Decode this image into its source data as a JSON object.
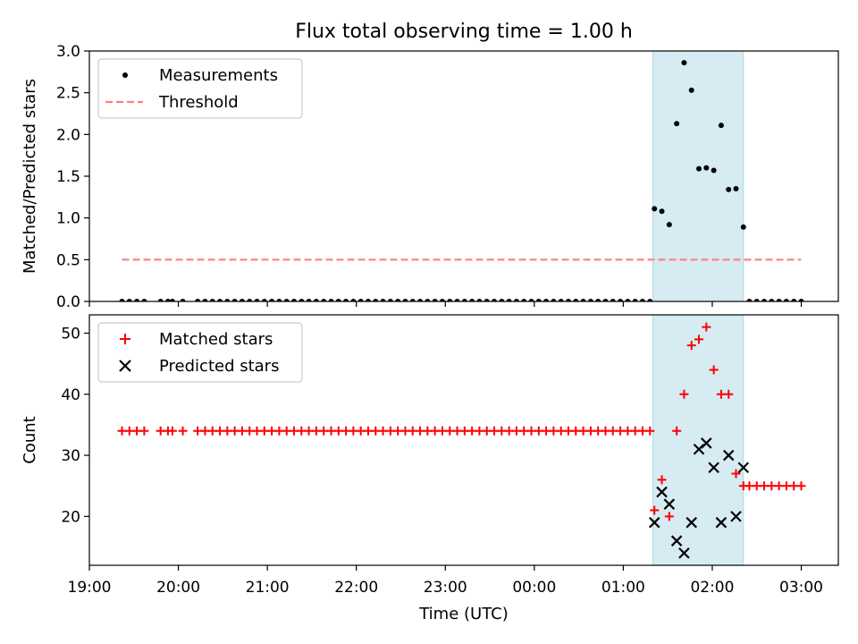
{
  "chart_data": {
    "title": "Flux total observing time = 1.00 h",
    "x_axis": {
      "label": "Time (UTC)",
      "type": "time",
      "ticks": [
        "19:00",
        "20:00",
        "21:00",
        "22:00",
        "23:00",
        "00:00",
        "01:00",
        "02:00",
        "03:00"
      ],
      "range": [
        "19:00",
        "03:25"
      ]
    },
    "highlight_window": {
      "start": "01:20",
      "end": "02:21",
      "color": "#add8e6"
    },
    "panels": [
      {
        "type": "scatter",
        "ylabel": "Matched/Predicted stars",
        "ylim": [
          0,
          3.0
        ],
        "yticks": [
          "0.0",
          "0.5",
          "1.0",
          "1.5",
          "2.0",
          "2.5",
          "3.0"
        ],
        "legend_position": "upper-left",
        "series": [
          {
            "name": "Measurements",
            "marker": "dot",
            "color": "#000000",
            "points": [
              [
                "19:22",
                0.0
              ],
              [
                "19:27",
                0.0
              ],
              [
                "19:32",
                0.0
              ],
              [
                "19:37",
                0.0
              ],
              [
                "19:48",
                0.0
              ],
              [
                "19:53",
                0.0
              ],
              [
                "19:56",
                0.0
              ],
              [
                "20:03",
                0.0
              ],
              [
                "20:13",
                0.0
              ],
              [
                "20:18",
                0.0
              ],
              [
                "20:23",
                0.0
              ],
              [
                "20:28",
                0.0
              ],
              [
                "20:33",
                0.0
              ],
              [
                "20:38",
                0.0
              ],
              [
                "20:43",
                0.0
              ],
              [
                "20:48",
                0.0
              ],
              [
                "20:53",
                0.0
              ],
              [
                "20:58",
                0.0
              ],
              [
                "21:03",
                0.0
              ],
              [
                "21:08",
                0.0
              ],
              [
                "21:13",
                0.0
              ],
              [
                "21:18",
                0.0
              ],
              [
                "21:23",
                0.0
              ],
              [
                "21:28",
                0.0
              ],
              [
                "21:33",
                0.0
              ],
              [
                "21:38",
                0.0
              ],
              [
                "21:43",
                0.0
              ],
              [
                "21:48",
                0.0
              ],
              [
                "21:53",
                0.0
              ],
              [
                "21:58",
                0.0
              ],
              [
                "22:03",
                0.0
              ],
              [
                "22:08",
                0.0
              ],
              [
                "22:13",
                0.0
              ],
              [
                "22:18",
                0.0
              ],
              [
                "22:23",
                0.0
              ],
              [
                "22:28",
                0.0
              ],
              [
                "22:33",
                0.0
              ],
              [
                "22:38",
                0.0
              ],
              [
                "22:43",
                0.0
              ],
              [
                "22:48",
                0.0
              ],
              [
                "22:53",
                0.0
              ],
              [
                "22:58",
                0.0
              ],
              [
                "23:03",
                0.0
              ],
              [
                "23:08",
                0.0
              ],
              [
                "23:13",
                0.0
              ],
              [
                "23:18",
                0.0
              ],
              [
                "23:23",
                0.0
              ],
              [
                "23:28",
                0.0
              ],
              [
                "23:33",
                0.0
              ],
              [
                "23:38",
                0.0
              ],
              [
                "23:43",
                0.0
              ],
              [
                "23:48",
                0.0
              ],
              [
                "23:53",
                0.0
              ],
              [
                "23:58",
                0.0
              ],
              [
                "00:03",
                0.0
              ],
              [
                "00:08",
                0.0
              ],
              [
                "00:13",
                0.0
              ],
              [
                "00:18",
                0.0
              ],
              [
                "00:23",
                0.0
              ],
              [
                "00:28",
                0.0
              ],
              [
                "00:33",
                0.0
              ],
              [
                "00:38",
                0.0
              ],
              [
                "00:43",
                0.0
              ],
              [
                "00:48",
                0.0
              ],
              [
                "00:53",
                0.0
              ],
              [
                "00:58",
                0.0
              ],
              [
                "01:03",
                0.0
              ],
              [
                "01:08",
                0.0
              ],
              [
                "01:13",
                0.0
              ],
              [
                "01:18",
                0.0
              ],
              [
                "01:21",
                1.11
              ],
              [
                "01:26",
                1.08
              ],
              [
                "01:31",
                0.92
              ],
              [
                "01:36",
                2.13
              ],
              [
                "01:41",
                2.86
              ],
              [
                "01:46",
                2.53
              ],
              [
                "01:51",
                1.59
              ],
              [
                "01:56",
                1.6
              ],
              [
                "02:01",
                1.57
              ],
              [
                "02:06",
                2.11
              ],
              [
                "02:11",
                1.34
              ],
              [
                "02:16",
                1.35
              ],
              [
                "02:21",
                0.89
              ],
              [
                "02:25",
                0.0
              ],
              [
                "02:30",
                0.0
              ],
              [
                "02:35",
                0.0
              ],
              [
                "02:40",
                0.0
              ],
              [
                "02:45",
                0.0
              ],
              [
                "02:50",
                0.0
              ],
              [
                "02:55",
                0.0
              ],
              [
                "03:00",
                0.0
              ]
            ]
          },
          {
            "name": "Threshold",
            "marker": "dashed-line",
            "color": "#ff7f7f",
            "points": [
              [
                "19:22",
                0.5
              ],
              [
                "03:00",
                0.5
              ]
            ]
          }
        ]
      },
      {
        "type": "scatter",
        "ylabel": "Count",
        "ylim": [
          12,
          53
        ],
        "yticks": [
          "20",
          "30",
          "40",
          "50"
        ],
        "legend_position": "upper-left",
        "series": [
          {
            "name": "Matched stars",
            "marker": "plus",
            "color": "#ff0000",
            "points": [
              [
                "19:22",
                34
              ],
              [
                "19:27",
                34
              ],
              [
                "19:32",
                34
              ],
              [
                "19:37",
                34
              ],
              [
                "19:48",
                34
              ],
              [
                "19:53",
                34
              ],
              [
                "19:56",
                34
              ],
              [
                "20:03",
                34
              ],
              [
                "20:13",
                34
              ],
              [
                "20:18",
                34
              ],
              [
                "20:23",
                34
              ],
              [
                "20:28",
                34
              ],
              [
                "20:33",
                34
              ],
              [
                "20:38",
                34
              ],
              [
                "20:43",
                34
              ],
              [
                "20:48",
                34
              ],
              [
                "20:53",
                34
              ],
              [
                "20:58",
                34
              ],
              [
                "21:03",
                34
              ],
              [
                "21:08",
                34
              ],
              [
                "21:13",
                34
              ],
              [
                "21:18",
                34
              ],
              [
                "21:23",
                34
              ],
              [
                "21:28",
                34
              ],
              [
                "21:33",
                34
              ],
              [
                "21:38",
                34
              ],
              [
                "21:43",
                34
              ],
              [
                "21:48",
                34
              ],
              [
                "21:53",
                34
              ],
              [
                "21:58",
                34
              ],
              [
                "22:03",
                34
              ],
              [
                "22:08",
                34
              ],
              [
                "22:13",
                34
              ],
              [
                "22:18",
                34
              ],
              [
                "22:23",
                34
              ],
              [
                "22:28",
                34
              ],
              [
                "22:33",
                34
              ],
              [
                "22:38",
                34
              ],
              [
                "22:43",
                34
              ],
              [
                "22:48",
                34
              ],
              [
                "22:53",
                34
              ],
              [
                "22:58",
                34
              ],
              [
                "23:03",
                34
              ],
              [
                "23:08",
                34
              ],
              [
                "23:13",
                34
              ],
              [
                "23:18",
                34
              ],
              [
                "23:23",
                34
              ],
              [
                "23:28",
                34
              ],
              [
                "23:33",
                34
              ],
              [
                "23:38",
                34
              ],
              [
                "23:43",
                34
              ],
              [
                "23:48",
                34
              ],
              [
                "23:53",
                34
              ],
              [
                "23:58",
                34
              ],
              [
                "00:03",
                34
              ],
              [
                "00:08",
                34
              ],
              [
                "00:13",
                34
              ],
              [
                "00:18",
                34
              ],
              [
                "00:23",
                34
              ],
              [
                "00:28",
                34
              ],
              [
                "00:33",
                34
              ],
              [
                "00:38",
                34
              ],
              [
                "00:43",
                34
              ],
              [
                "00:48",
                34
              ],
              [
                "00:53",
                34
              ],
              [
                "00:58",
                34
              ],
              [
                "01:03",
                34
              ],
              [
                "01:08",
                34
              ],
              [
                "01:13",
                34
              ],
              [
                "01:18",
                34
              ],
              [
                "01:21",
                21
              ],
              [
                "01:26",
                26
              ],
              [
                "01:31",
                20
              ],
              [
                "01:36",
                34
              ],
              [
                "01:41",
                40
              ],
              [
                "01:46",
                48
              ],
              [
                "01:51",
                49
              ],
              [
                "01:56",
                51
              ],
              [
                "02:01",
                44
              ],
              [
                "02:06",
                40
              ],
              [
                "02:11",
                40
              ],
              [
                "02:16",
                27
              ],
              [
                "02:21",
                25
              ],
              [
                "02:25",
                25
              ],
              [
                "02:30",
                25
              ],
              [
                "02:35",
                25
              ],
              [
                "02:40",
                25
              ],
              [
                "02:45",
                25
              ],
              [
                "02:50",
                25
              ],
              [
                "02:55",
                25
              ],
              [
                "03:00",
                25
              ]
            ]
          },
          {
            "name": "Predicted stars",
            "marker": "cross",
            "color": "#000000",
            "points": [
              [
                "01:21",
                19
              ],
              [
                "01:26",
                24
              ],
              [
                "01:31",
                22
              ],
              [
                "01:36",
                16
              ],
              [
                "01:41",
                14
              ],
              [
                "01:46",
                19
              ],
              [
                "01:51",
                31
              ],
              [
                "01:56",
                32
              ],
              [
                "02:01",
                28
              ],
              [
                "02:06",
                19
              ],
              [
                "02:11",
                30
              ],
              [
                "02:16",
                20
              ],
              [
                "02:21",
                28
              ]
            ]
          }
        ]
      }
    ]
  }
}
